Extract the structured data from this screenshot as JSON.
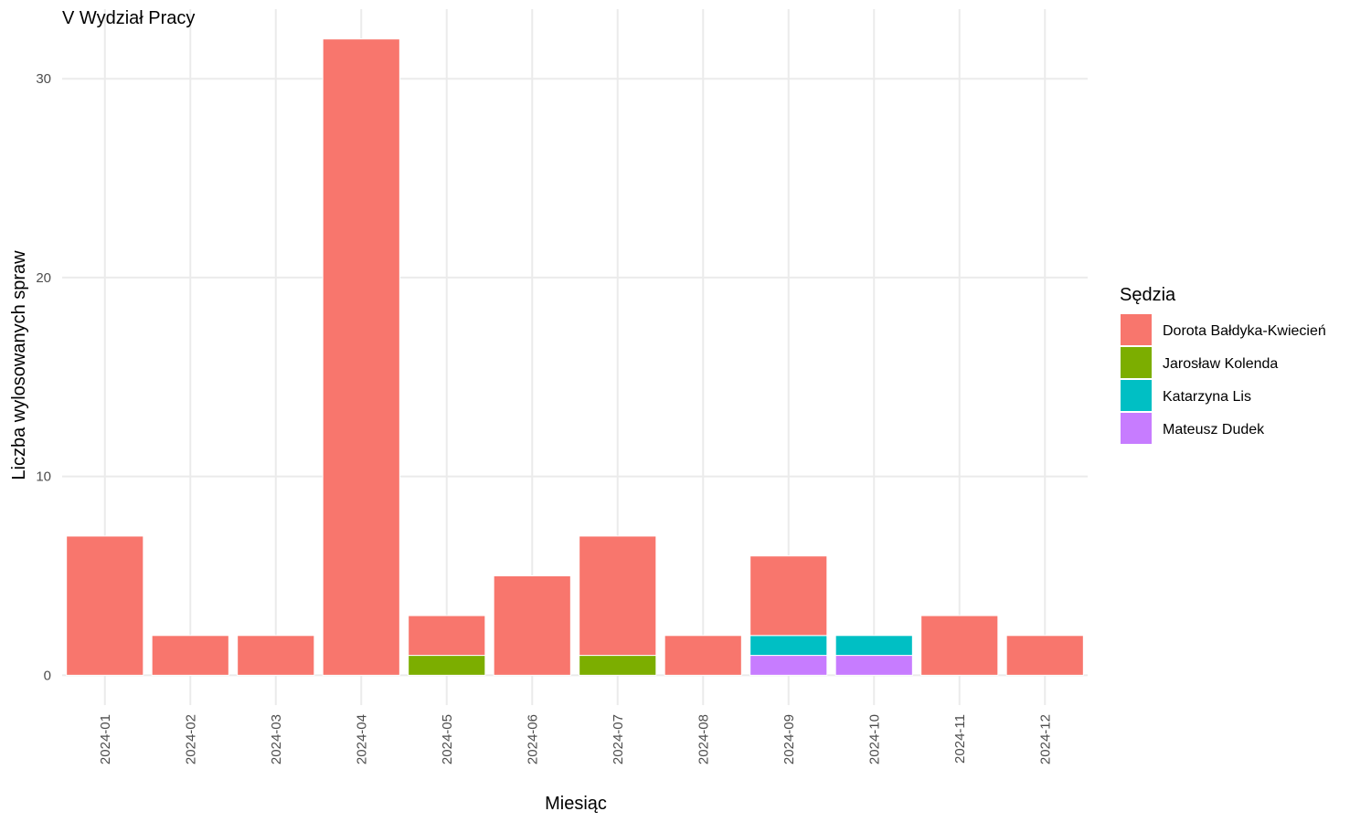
{
  "chart_data": {
    "type": "bar",
    "stacked": true,
    "title": "V Wydział Pracy",
    "xlabel": "Miesiąc",
    "ylabel": "Liczba wylosowanych spraw",
    "categories": [
      "2024-01",
      "2024-02",
      "2024-03",
      "2024-04",
      "2024-05",
      "2024-06",
      "2024-07",
      "2024-08",
      "2024-09",
      "2024-10",
      "2024-11",
      "2024-12"
    ],
    "ylim": [
      -1.5,
      33.5
    ],
    "yticks": [
      0,
      10,
      20,
      30
    ],
    "y_tick_labels": [
      "0",
      "10",
      "20",
      "30"
    ],
    "grid": true,
    "legend": {
      "title": "Sędzia",
      "position": "right"
    },
    "series": [
      {
        "name": "Dorota Bałdyka-Kwiecień",
        "color": "#F8766D",
        "values": [
          7,
          2,
          2,
          32,
          2,
          5,
          6,
          2,
          4,
          0,
          3,
          2
        ]
      },
      {
        "name": "Jarosław Kolenda",
        "color": "#7CAE00",
        "values": [
          0,
          0,
          0,
          0,
          1,
          0,
          1,
          0,
          0,
          0,
          0,
          0
        ]
      },
      {
        "name": "Katarzyna Lis",
        "color": "#00BFC4",
        "values": [
          0,
          0,
          0,
          0,
          0,
          0,
          0,
          0,
          1,
          1,
          0,
          0
        ]
      },
      {
        "name": "Mateusz Dudek",
        "color": "#C77CFF",
        "values": [
          0,
          0,
          0,
          0,
          0,
          0,
          0,
          0,
          1,
          1,
          0,
          0
        ]
      }
    ]
  }
}
